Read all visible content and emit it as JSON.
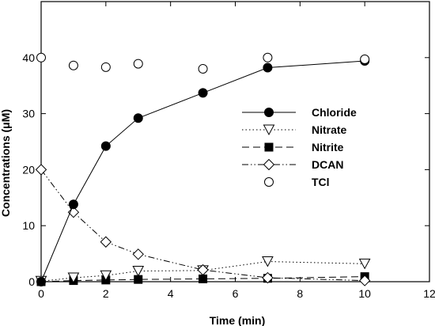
{
  "chart_data": {
    "type": "line",
    "xlabel": "Time (min)",
    "ylabel": "Concentrations (μM)",
    "xlim": [
      0,
      12
    ],
    "ylim": [
      0,
      50
    ],
    "xticks": [
      0,
      2,
      4,
      6,
      8,
      10,
      12
    ],
    "yticks": [
      0,
      10,
      20,
      30,
      40
    ],
    "grid": false,
    "legend_position": "center-right",
    "series": [
      {
        "name": "Chloride",
        "marker": "filled-circle",
        "line": "solid",
        "x": [
          0,
          1,
          2,
          3,
          5,
          7,
          10
        ],
        "y": [
          0,
          13.8,
          24.2,
          29.2,
          33.7,
          38.2,
          39.4
        ]
      },
      {
        "name": "Nitrate",
        "marker": "open-triangle-down",
        "line": "dotted",
        "x": [
          0,
          1,
          2,
          3,
          5,
          7,
          10
        ],
        "y": [
          0.1,
          0.7,
          1.1,
          1.9,
          2.0,
          3.6,
          3.2
        ]
      },
      {
        "name": "Nitrite",
        "marker": "filled-square",
        "line": "dashed",
        "x": [
          0,
          1,
          2,
          3,
          5,
          7,
          10
        ],
        "y": [
          0,
          0.2,
          0.3,
          0.4,
          0.5,
          0.6,
          0.9
        ]
      },
      {
        "name": "DCAN",
        "marker": "open-diamond",
        "line": "dash-dot-dot",
        "x": [
          0,
          1,
          2,
          3,
          5,
          7,
          10
        ],
        "y": [
          20.0,
          12.4,
          7.1,
          4.9,
          2.1,
          0.7,
          0.2
        ]
      },
      {
        "name": "TCl",
        "marker": "open-circle",
        "line": "none",
        "x": [
          0,
          1,
          2,
          3,
          5,
          7,
          10
        ],
        "y": [
          40.0,
          38.6,
          38.3,
          38.9,
          38.0,
          40.0,
          39.7
        ]
      }
    ]
  }
}
